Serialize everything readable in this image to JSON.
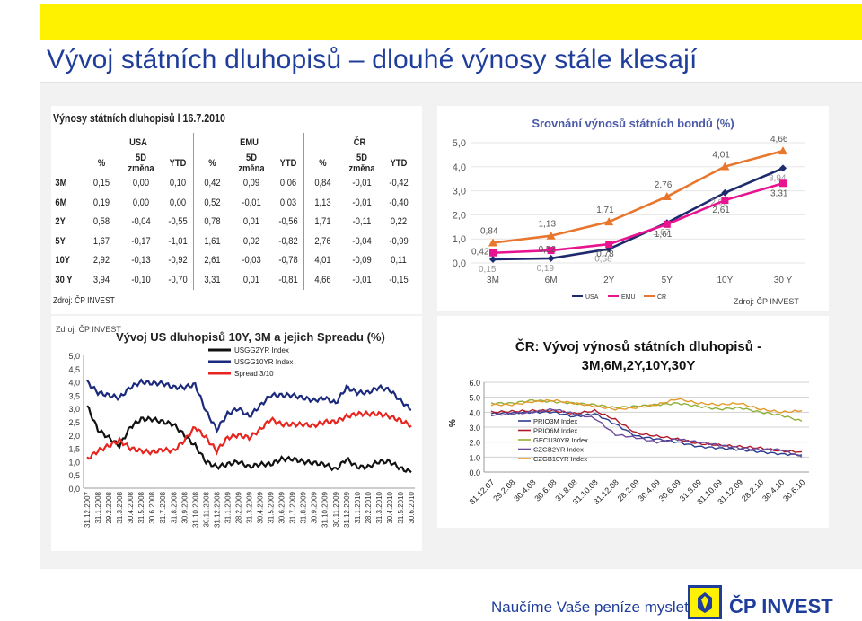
{
  "slide": {
    "title": "Vývoj státních dluhopisů – dlouhé výnosy stále klesají",
    "slogan": "Naučíme Vaše peníze myslet",
    "brand": "ČP INVEST"
  },
  "colors": {
    "title": "#1f3d9a",
    "accent": "#fff200",
    "usa": "#1f2a6e",
    "emu": "#e8138f",
    "cr": "#e8762c"
  },
  "chart_data": [
    {
      "type": "table",
      "title": "Výnosy státních dluhopisů l 16.7.2010",
      "groups": [
        "USA",
        "EMU",
        "ČR"
      ],
      "columns": [
        "%",
        "5D změna",
        "YTD",
        "%",
        "5D změna",
        "YTD",
        "%",
        "5D změna",
        "YTD"
      ],
      "rows": [
        {
          "label": "3M",
          "values": [
            "0,15",
            "0,00",
            "0,10",
            "0,42",
            "0,09",
            "0,06",
            "0,84",
            "-0,01",
            "-0,42"
          ]
        },
        {
          "label": "6M",
          "values": [
            "0,19",
            "0,00",
            "0,00",
            "0,52",
            "-0,01",
            "0,03",
            "1,13",
            "-0,01",
            "-0,40"
          ]
        },
        {
          "label": "2Y",
          "values": [
            "0,58",
            "-0,04",
            "-0,55",
            "0,78",
            "0,01",
            "-0,56",
            "1,71",
            "-0,11",
            "0,22"
          ]
        },
        {
          "label": "5Y",
          "values": [
            "1,67",
            "-0,17",
            "-1,01",
            "1,61",
            "0,02",
            "-0,82",
            "2,76",
            "-0,04",
            "-0,99"
          ]
        },
        {
          "label": "10Y",
          "values": [
            "2,92",
            "-0,13",
            "-0,92",
            "2,61",
            "-0,03",
            "-0,78",
            "4,01",
            "-0,09",
            "0,11"
          ]
        },
        {
          "label": "30 Y",
          "values": [
            "3,94",
            "-0,10",
            "-0,70",
            "3,31",
            "0,01",
            "-0,81",
            "4,66",
            "-0,01",
            "-0,15"
          ]
        }
      ],
      "source": "Zdroj: ČP INVEST"
    },
    {
      "type": "line",
      "title": "Srovnání výnosů státních bondů (%)",
      "categories": [
        "3M",
        "6M",
        "2Y",
        "5Y",
        "10Y",
        "30 Y"
      ],
      "ylim": [
        0,
        5
      ],
      "yticks": [
        "0,0",
        "1,0",
        "2,0",
        "3,0",
        "4,0",
        "5,0"
      ],
      "series": [
        {
          "name": "USA",
          "values": [
            0.15,
            0.19,
            0.58,
            1.67,
            2.92,
            3.94
          ],
          "labels": [
            "0,15",
            "0,19",
            "0,58",
            "1,67",
            "2,92",
            "3,94"
          ]
        },
        {
          "name": "EMU",
          "values": [
            0.42,
            0.52,
            0.78,
            1.61,
            2.61,
            3.31
          ],
          "labels": [
            "0,42",
            "0,52",
            "0,78",
            "1,61",
            "2,61",
            "3,31"
          ]
        },
        {
          "name": "ČR",
          "values": [
            0.84,
            1.13,
            1.71,
            2.76,
            4.01,
            4.66
          ],
          "labels": [
            "0,84",
            "1,13",
            "1,71",
            "2,76",
            "4,01",
            "4,66"
          ]
        }
      ],
      "source": "Zdroj: ČP INVEST"
    },
    {
      "type": "line",
      "title": "Vývoj US dluhopisů 10Y, 3M a jejich Spreadu (%)",
      "source": "Zdroj: ČP INVEST",
      "ylim": [
        0,
        5
      ],
      "yticks": [
        "0,0",
        "0,5",
        "1,0",
        "1,5",
        "2,0",
        "2,5",
        "3,0",
        "3,5",
        "4,0",
        "4,5",
        "5,0"
      ],
      "x": [
        "31.12.2007",
        "31.1.2008",
        "29.2.2008",
        "31.3.2008",
        "30.4.2008",
        "31.5.2008",
        "30.6.2008",
        "31.7.2008",
        "31.8.2008",
        "30.9.2008",
        "31.10.2008",
        "30.11.2008",
        "31.12.2008",
        "31.1.2009",
        "28.2.2009",
        "31.3.2009",
        "30.4.2009",
        "31.5.2009",
        "30.6.2009",
        "31.7.2009",
        "31.8.2009",
        "30.9.2009",
        "31.10.2009",
        "30.11.2009",
        "31.12.2009",
        "31.1.2010",
        "28.2.2010",
        "31.3.2010",
        "30.4.2010",
        "31.5.2010",
        "30.6.2010"
      ],
      "series": [
        {
          "name": "USGG2YR Index",
          "values": [
            3.1,
            2.2,
            1.9,
            1.6,
            2.3,
            2.6,
            2.6,
            2.5,
            2.4,
            2.0,
            1.6,
            1.0,
            0.8,
            0.9,
            1.0,
            0.8,
            0.9,
            0.9,
            1.1,
            1.1,
            1.0,
            0.95,
            0.9,
            0.7,
            1.1,
            0.8,
            0.8,
            1.0,
            1.0,
            0.75,
            0.6
          ]
        },
        {
          "name": "USGG10YR Index",
          "values": [
            4.0,
            3.6,
            3.5,
            3.4,
            3.8,
            4.0,
            3.95,
            3.95,
            3.8,
            3.8,
            3.9,
            2.9,
            2.2,
            2.8,
            3.0,
            2.7,
            3.1,
            3.5,
            3.5,
            3.5,
            3.4,
            3.3,
            3.4,
            3.2,
            3.8,
            3.6,
            3.6,
            3.8,
            3.7,
            3.3,
            2.95
          ]
        },
        {
          "name": "Spread 3/10",
          "values": [
            1.1,
            1.4,
            1.6,
            1.8,
            1.5,
            1.4,
            1.35,
            1.45,
            1.4,
            1.8,
            2.3,
            1.9,
            1.4,
            1.9,
            2.0,
            1.9,
            2.2,
            2.6,
            2.4,
            2.4,
            2.4,
            2.35,
            2.5,
            2.5,
            2.7,
            2.8,
            2.8,
            2.8,
            2.7,
            2.55,
            2.35
          ]
        }
      ]
    },
    {
      "type": "line",
      "title": "ČR: Vývoj výnosů státních dluhopisů - 3M,6M,2Y,10Y,30Y",
      "ylabel": "%",
      "ylim": [
        0,
        6
      ],
      "yticks": [
        "0.0",
        "1.0",
        "2.0",
        "3.0",
        "4.0",
        "5.0",
        "6.0"
      ],
      "x": [
        "31.12.07",
        "29.2.08",
        "30.4.08",
        "30.6.08",
        "31.8.08",
        "31.10.08",
        "31.12.08",
        "28.2.09",
        "30.4.09",
        "30.6.09",
        "31.8.09",
        "31.10.09",
        "31.12.09",
        "28.2.10",
        "30.4.10",
        "30.6.10"
      ],
      "series": [
        {
          "name": "PRIO3M Index",
          "values": [
            3.9,
            3.95,
            4.0,
            4.0,
            3.7,
            3.9,
            3.2,
            2.4,
            2.2,
            2.0,
            1.7,
            1.6,
            1.5,
            1.35,
            1.2,
            1.15
          ]
        },
        {
          "name": "PRIO6M Index",
          "values": [
            4.0,
            4.05,
            4.1,
            4.1,
            3.9,
            4.1,
            3.5,
            2.6,
            2.4,
            2.2,
            1.9,
            1.8,
            1.7,
            1.6,
            1.4,
            1.35
          ]
        },
        {
          "name": "GECU30YR Index",
          "values": [
            4.6,
            4.6,
            4.8,
            4.7,
            4.6,
            4.5,
            4.3,
            4.4,
            4.5,
            4.6,
            4.4,
            4.2,
            4.3,
            4.0,
            3.8,
            3.4
          ]
        },
        {
          "name": "CZGB2YR Index",
          "values": [
            3.8,
            3.9,
            4.0,
            4.2,
            3.9,
            3.6,
            2.5,
            2.3,
            2.0,
            2.2,
            2.0,
            1.8,
            1.6,
            1.5,
            1.5,
            1.0
          ]
        },
        {
          "name": "CZGB10YR Index",
          "values": [
            4.5,
            4.5,
            4.7,
            4.8,
            4.6,
            4.4,
            4.2,
            4.3,
            4.5,
            4.9,
            4.6,
            4.5,
            4.6,
            4.2,
            4.0,
            4.1
          ]
        }
      ]
    }
  ]
}
